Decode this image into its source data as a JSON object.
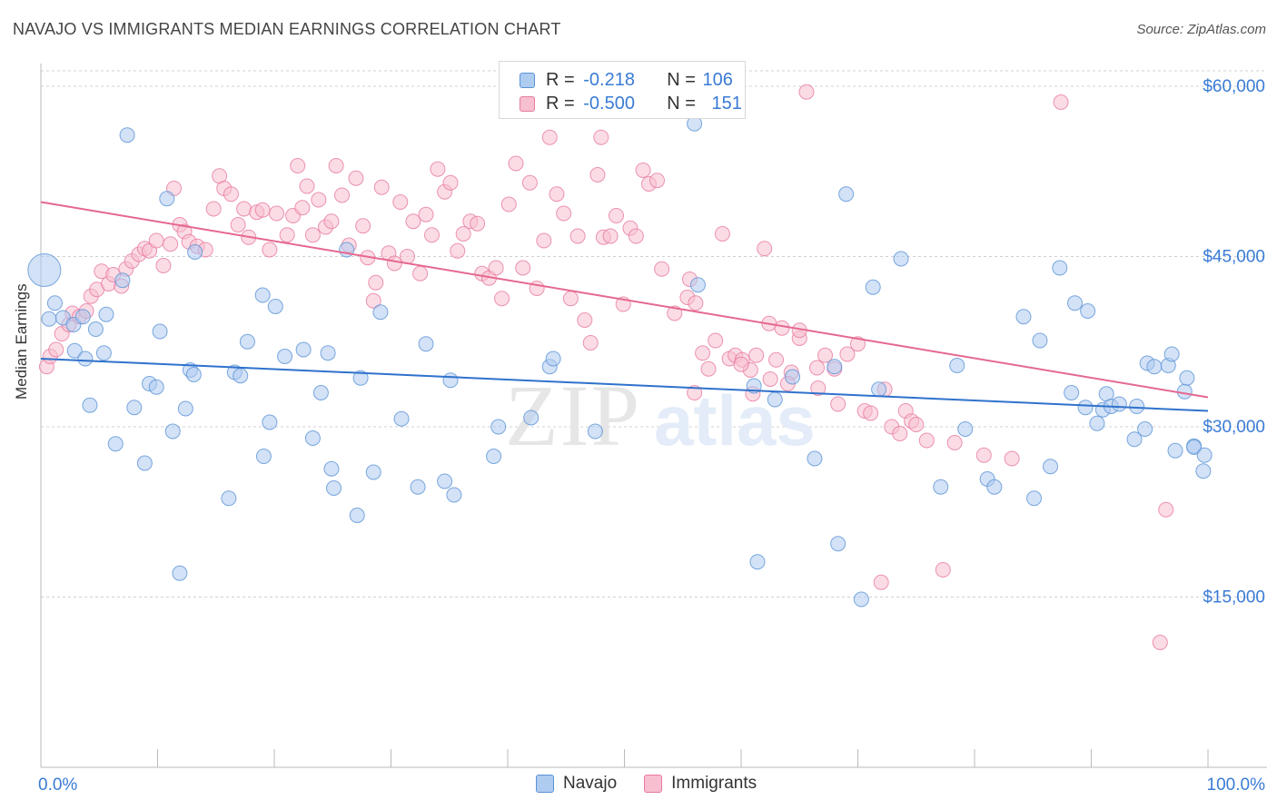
{
  "title": "NAVAJO VS IMMIGRANTS MEDIAN EARNINGS CORRELATION CHART",
  "source": "Source: ZipAtlas.com",
  "watermark": {
    "zip": "ZIP",
    "atlas": "atlas"
  },
  "legend": {
    "rows": [
      {
        "r_label": "R = ",
        "r_value": "-0.218",
        "n_label": "N = ",
        "n_value": "106"
      },
      {
        "r_label": "R = ",
        "r_value": "-0.500",
        "n_label": "N = ",
        "n_value": "151"
      }
    ]
  },
  "bottom_legend": {
    "navajo": "Navajo",
    "immigrants": "Immigrants"
  },
  "colors": {
    "navajo_fill": "#aecbf0",
    "navajo_stroke": "#5b93d6",
    "navajo_line": "#2f72cc",
    "immigrants_fill": "#f7bfd0",
    "immigrants_stroke": "#e77aa0",
    "immigrants_line": "#e5688f",
    "tick_label": "#3a7bd5",
    "grid": "#d0d0d0"
  },
  "chart_data": {
    "type": "scatter",
    "ylabel": "Median Earnings",
    "x_tick_labels": [
      "0.0%",
      "100.0%"
    ],
    "y_tick_labels": [
      "$15,000",
      "$30,000",
      "$45,000",
      "$60,000"
    ],
    "y_ticks": [
      15000,
      30000,
      45000,
      60000
    ],
    "xlim": [
      0,
      100
    ],
    "ylim": [
      0,
      62000
    ],
    "grid": "horizontal dashed",
    "series": [
      {
        "name": "Navajo",
        "trend": {
          "x": [
            0,
            100
          ],
          "y": [
            36000,
            31400
          ]
        },
        "points": [
          [
            0.3,
            43800
          ],
          [
            0.7,
            39500
          ],
          [
            1.2,
            40900
          ],
          [
            1.9,
            39600
          ],
          [
            2.8,
            39000
          ],
          [
            2.9,
            36700
          ],
          [
            3.6,
            39700
          ],
          [
            3.8,
            36000
          ],
          [
            4.2,
            31900
          ],
          [
            4.7,
            38600
          ],
          [
            5.4,
            36500
          ],
          [
            5.6,
            39900
          ],
          [
            6.4,
            28500
          ],
          [
            7.0,
            42900
          ],
          [
            7.4,
            55700
          ],
          [
            8.0,
            31700
          ],
          [
            8.9,
            26800
          ],
          [
            9.3,
            33800
          ],
          [
            9.9,
            33500
          ],
          [
            10.2,
            38400
          ],
          [
            10.8,
            50100
          ],
          [
            11.3,
            29600
          ],
          [
            11.9,
            17100
          ],
          [
            12.4,
            31600
          ],
          [
            12.8,
            35000
          ],
          [
            13.1,
            34600
          ],
          [
            13.2,
            45400
          ],
          [
            16.1,
            23700
          ],
          [
            16.6,
            34800
          ],
          [
            17.1,
            34500
          ],
          [
            17.7,
            37500
          ],
          [
            19.0,
            41600
          ],
          [
            19.1,
            27400
          ],
          [
            19.6,
            30400
          ],
          [
            20.1,
            40600
          ],
          [
            20.9,
            36200
          ],
          [
            22.5,
            36800
          ],
          [
            23.3,
            29000
          ],
          [
            24.0,
            33000
          ],
          [
            24.6,
            36500
          ],
          [
            24.9,
            26300
          ],
          [
            25.1,
            24600
          ],
          [
            26.2,
            45600
          ],
          [
            27.1,
            22200
          ],
          [
            27.4,
            34300
          ],
          [
            28.5,
            26000
          ],
          [
            29.1,
            40100
          ],
          [
            30.9,
            30700
          ],
          [
            32.3,
            24700
          ],
          [
            33.0,
            37300
          ],
          [
            34.6,
            25200
          ],
          [
            35.1,
            34100
          ],
          [
            35.4,
            24000
          ],
          [
            38.8,
            27400
          ],
          [
            39.2,
            30000
          ],
          [
            42.0,
            30800
          ],
          [
            43.6,
            35300
          ],
          [
            43.9,
            36000
          ],
          [
            47.5,
            29600
          ],
          [
            56.0,
            56700
          ],
          [
            56.3,
            42500
          ],
          [
            61.1,
            33600
          ],
          [
            61.4,
            18100
          ],
          [
            62.9,
            32400
          ],
          [
            64.4,
            34400
          ],
          [
            66.3,
            27200
          ],
          [
            68.0,
            35300
          ],
          [
            68.3,
            19700
          ],
          [
            69.0,
            50500
          ],
          [
            70.3,
            14800
          ],
          [
            71.3,
            42300
          ],
          [
            71.8,
            33300
          ],
          [
            73.7,
            44800
          ],
          [
            77.1,
            24700
          ],
          [
            78.5,
            35400
          ],
          [
            79.2,
            29800
          ],
          [
            81.1,
            25400
          ],
          [
            81.7,
            24700
          ],
          [
            84.2,
            39700
          ],
          [
            85.1,
            23700
          ],
          [
            85.6,
            37600
          ],
          [
            86.5,
            26500
          ],
          [
            87.3,
            44000
          ],
          [
            88.3,
            33000
          ],
          [
            88.6,
            40900
          ],
          [
            89.5,
            31700
          ],
          [
            89.7,
            40200
          ],
          [
            90.5,
            30300
          ],
          [
            91.0,
            31500
          ],
          [
            91.3,
            32900
          ],
          [
            91.7,
            31800
          ],
          [
            92.4,
            32000
          ],
          [
            93.7,
            28900
          ],
          [
            93.9,
            31800
          ],
          [
            94.6,
            29800
          ],
          [
            94.8,
            35600
          ],
          [
            95.4,
            35300
          ],
          [
            96.6,
            35400
          ],
          [
            96.9,
            36400
          ],
          [
            97.2,
            27900
          ],
          [
            98.0,
            33100
          ],
          [
            98.2,
            34300
          ],
          [
            98.8,
            28300
          ],
          [
            98.8,
            28200
          ],
          [
            99.6,
            26100
          ],
          [
            99.7,
            27500
          ]
        ]
      },
      {
        "name": "Immigrants",
        "trend": {
          "x": [
            0,
            100
          ],
          "y": [
            49800,
            32600
          ]
        },
        "points": [
          [
            0.5,
            35300
          ],
          [
            0.8,
            36200
          ],
          [
            1.3,
            36800
          ],
          [
            1.8,
            38200
          ],
          [
            2.4,
            39000
          ],
          [
            2.7,
            40000
          ],
          [
            3.3,
            39700
          ],
          [
            3.9,
            40200
          ],
          [
            4.3,
            41500
          ],
          [
            4.8,
            42100
          ],
          [
            5.2,
            43700
          ],
          [
            5.8,
            42600
          ],
          [
            6.2,
            43400
          ],
          [
            6.9,
            42400
          ],
          [
            7.3,
            43900
          ],
          [
            7.8,
            44600
          ],
          [
            8.4,
            45200
          ],
          [
            8.9,
            45700
          ],
          [
            9.3,
            45500
          ],
          [
            9.9,
            46400
          ],
          [
            10.5,
            44200
          ],
          [
            11.1,
            46100
          ],
          [
            11.4,
            51000
          ],
          [
            11.9,
            47800
          ],
          [
            12.3,
            47200
          ],
          [
            12.7,
            46300
          ],
          [
            13.4,
            45900
          ],
          [
            14.1,
            45600
          ],
          [
            14.8,
            49200
          ],
          [
            15.3,
            52100
          ],
          [
            15.7,
            51000
          ],
          [
            16.3,
            50500
          ],
          [
            16.9,
            47800
          ],
          [
            17.4,
            49200
          ],
          [
            17.8,
            46700
          ],
          [
            18.5,
            48900
          ],
          [
            19.0,
            49100
          ],
          [
            19.6,
            45600
          ],
          [
            20.2,
            48800
          ],
          [
            21.1,
            46900
          ],
          [
            21.6,
            48600
          ],
          [
            22.0,
            53000
          ],
          [
            22.4,
            49300
          ],
          [
            22.8,
            51200
          ],
          [
            23.3,
            46900
          ],
          [
            23.8,
            50000
          ],
          [
            24.4,
            47600
          ],
          [
            24.9,
            48100
          ],
          [
            25.3,
            53000
          ],
          [
            25.8,
            50400
          ],
          [
            26.4,
            46000
          ],
          [
            27.0,
            51900
          ],
          [
            27.6,
            47700
          ],
          [
            28.0,
            44900
          ],
          [
            28.5,
            41100
          ],
          [
            28.7,
            42700
          ],
          [
            29.2,
            51100
          ],
          [
            29.8,
            45300
          ],
          [
            30.3,
            44400
          ],
          [
            30.8,
            49800
          ],
          [
            31.4,
            45000
          ],
          [
            31.9,
            48100
          ],
          [
            32.5,
            43500
          ],
          [
            33.0,
            48700
          ],
          [
            33.5,
            46900
          ],
          [
            34.0,
            52700
          ],
          [
            34.6,
            50700
          ],
          [
            35.1,
            51500
          ],
          [
            35.7,
            45500
          ],
          [
            36.2,
            47000
          ],
          [
            36.8,
            48100
          ],
          [
            37.4,
            47900
          ],
          [
            37.8,
            43500
          ],
          [
            38.4,
            43100
          ],
          [
            39.0,
            44000
          ],
          [
            39.5,
            41300
          ],
          [
            40.1,
            49600
          ],
          [
            40.7,
            53200
          ],
          [
            41.3,
            44000
          ],
          [
            41.9,
            51500
          ],
          [
            42.5,
            42200
          ],
          [
            43.1,
            46400
          ],
          [
            43.6,
            55500
          ],
          [
            44.2,
            50500
          ],
          [
            44.8,
            48800
          ],
          [
            45.4,
            41300
          ],
          [
            46.0,
            46800
          ],
          [
            46.6,
            39400
          ],
          [
            47.1,
            37400
          ],
          [
            47.7,
            52200
          ],
          [
            48.2,
            46700
          ],
          [
            48.8,
            46800
          ],
          [
            49.3,
            48600
          ],
          [
            49.9,
            40800
          ],
          [
            50.5,
            47500
          ],
          [
            51.0,
            46800
          ],
          [
            51.6,
            52600
          ],
          [
            52.1,
            51400
          ],
          [
            52.8,
            51700
          ],
          [
            53.2,
            43900
          ],
          [
            54.3,
            40000
          ],
          [
            55.4,
            41400
          ],
          [
            55.6,
            43000
          ],
          [
            56.1,
            40900
          ],
          [
            56.7,
            36500
          ],
          [
            57.2,
            35100
          ],
          [
            57.8,
            37600
          ],
          [
            58.4,
            47000
          ],
          [
            59.0,
            36000
          ],
          [
            59.5,
            36300
          ],
          [
            60.1,
            35900
          ],
          [
            60.8,
            35000
          ],
          [
            61.3,
            36300
          ],
          [
            62.0,
            45700
          ],
          [
            62.4,
            39100
          ],
          [
            63.0,
            35900
          ],
          [
            63.5,
            38700
          ],
          [
            64.3,
            34800
          ],
          [
            65.0,
            37800
          ],
          [
            65.6,
            59500
          ],
          [
            66.5,
            35200
          ],
          [
            67.2,
            36300
          ],
          [
            68.0,
            35100
          ],
          [
            68.3,
            32000
          ],
          [
            69.1,
            36400
          ],
          [
            70.0,
            37300
          ],
          [
            70.6,
            31400
          ],
          [
            71.1,
            31200
          ],
          [
            72.0,
            16300
          ],
          [
            72.3,
            33300
          ],
          [
            72.9,
            30000
          ],
          [
            73.6,
            29400
          ],
          [
            74.1,
            31400
          ],
          [
            74.6,
            30500
          ],
          [
            75.0,
            30200
          ],
          [
            75.9,
            28800
          ],
          [
            77.3,
            17400
          ],
          [
            78.3,
            28600
          ],
          [
            80.8,
            27500
          ],
          [
            83.2,
            27200
          ],
          [
            87.4,
            58600
          ],
          [
            95.9,
            11000
          ],
          [
            96.4,
            22700
          ],
          [
            66.6,
            33400
          ],
          [
            64.0,
            33800
          ],
          [
            62.5,
            34200
          ],
          [
            60.0,
            35500
          ],
          [
            48.0,
            55500
          ],
          [
            65.0,
            38500
          ],
          [
            56.0,
            33000
          ],
          [
            61.0,
            32900
          ]
        ]
      }
    ]
  }
}
